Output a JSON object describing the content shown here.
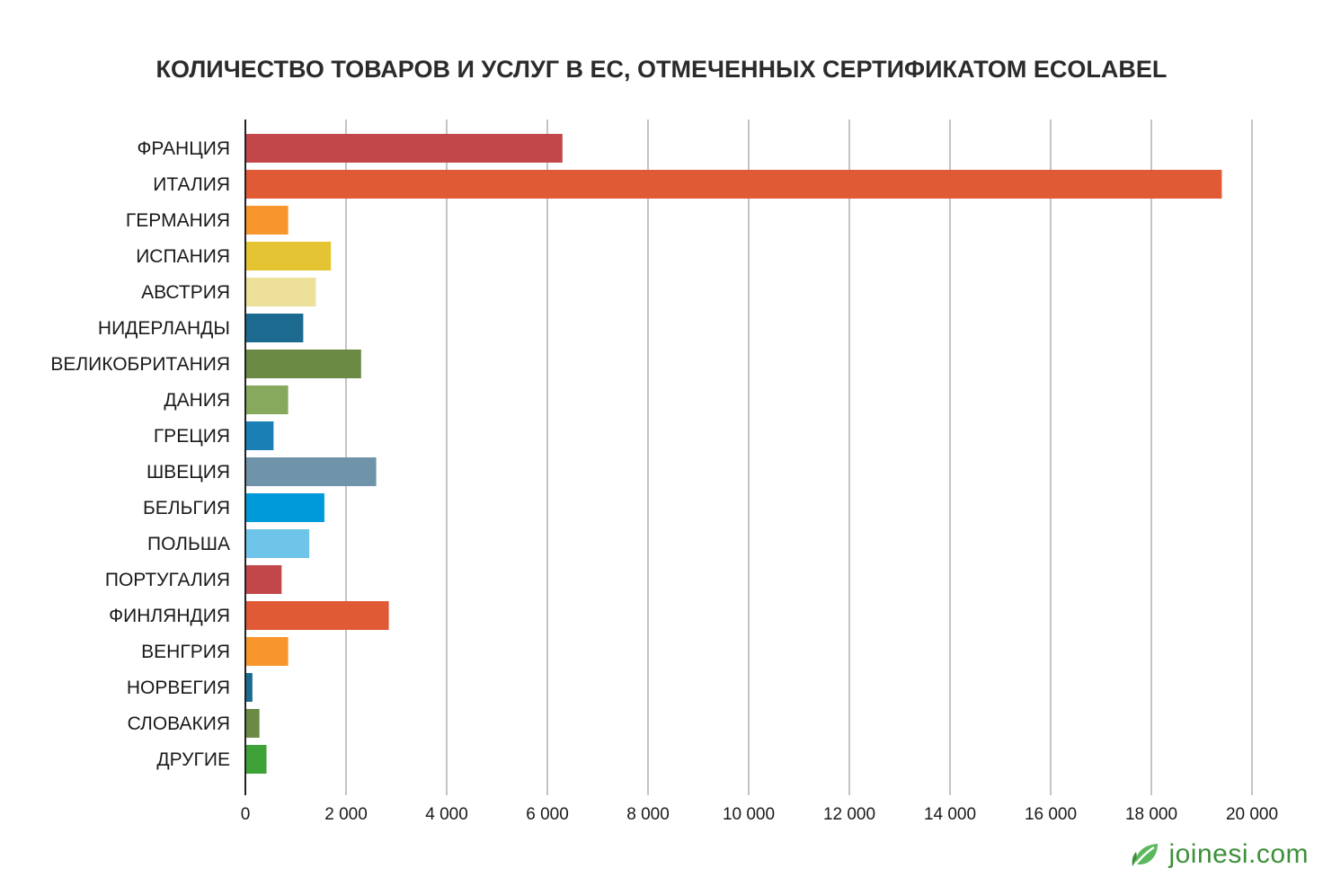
{
  "chart_data": {
    "type": "bar",
    "orientation": "horizontal",
    "title": "КОЛИЧЕСТВО ТОВАРОВ И УСЛУГ В ЕС, ОТМЕЧЕННЫХ СЕРТИФИКАТОМ ECOLABEL",
    "xlabel": "",
    "ylabel": "",
    "xlim": [
      0,
      20000
    ],
    "x_ticks": [
      0,
      2000,
      4000,
      6000,
      8000,
      10000,
      12000,
      14000,
      16000,
      18000,
      20000
    ],
    "x_tick_labels": [
      "0",
      "2 000",
      "4 000",
      "6 000",
      "8 000",
      "10 000",
      "12 000",
      "14 000",
      "16 000",
      "18 000",
      "20 000"
    ],
    "grid": "vertical",
    "categories": [
      "ФРАНЦИЯ",
      "ИТАЛИЯ",
      "ГЕРМАНИЯ",
      "ИСПАНИЯ",
      "АВСТРИЯ",
      "НИДЕРЛАНДЫ",
      "ВЕЛИКОБРИТАНИЯ",
      "ДАНИЯ",
      "ГРЕЦИЯ",
      "ШВЕЦИЯ",
      "БЕЛЬГИЯ",
      "ПОЛЬША",
      "ПОРТУГАЛИЯ",
      "ФИНЛЯНДИЯ",
      "ВЕНГРИЯ",
      "НОРВЕГИЯ",
      "СЛОВАКИЯ",
      "ДРУГИЕ"
    ],
    "values": [
      6300,
      19400,
      850,
      1700,
      1400,
      1150,
      2300,
      850,
      560,
      2600,
      1570,
      1270,
      720,
      2850,
      850,
      140,
      280,
      420
    ],
    "colors": [
      "#c1474a",
      "#e05a36",
      "#f7962c",
      "#e5c433",
      "#ede09b",
      "#1d6a90",
      "#6b8b45",
      "#86a95d",
      "#1a7fb5",
      "#6f93a8",
      "#0099da",
      "#6fc4ea",
      "#c1474a",
      "#e05a36",
      "#f7962c",
      "#1d6a90",
      "#6b8b45",
      "#3fa238"
    ]
  },
  "brand": {
    "text": "joinesi.com",
    "icon": "leaf-icon",
    "color": "#3d8f3a"
  }
}
